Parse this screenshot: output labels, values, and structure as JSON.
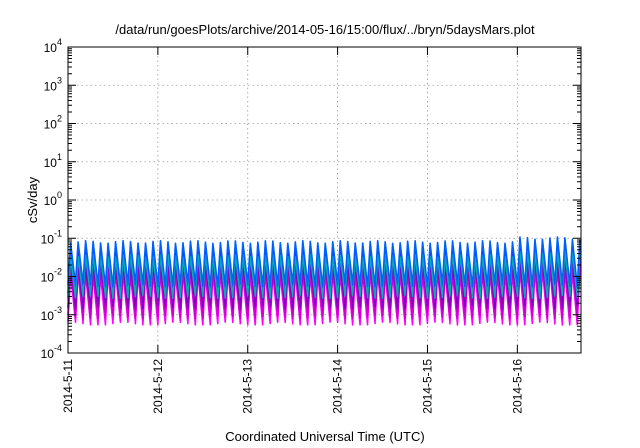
{
  "chart_data": {
    "type": "line",
    "title": "/data/run/goesPlots/archive/2014-05-16/15:00/flux/../bryn/5daysMars.plot",
    "xlabel": "Coordinated Universal Time (UTC)",
    "ylabel": "cSv/day",
    "x_tick_labels": [
      "2014-5-11",
      "2014-5-12",
      "2014-5-13",
      "2014-5-14",
      "2014-5-15",
      "2014-5-16"
    ],
    "y_tick_labels": [
      {
        "base": "10",
        "exp": "-4"
      },
      {
        "base": "10",
        "exp": "-3"
      },
      {
        "base": "10",
        "exp": "-2"
      },
      {
        "base": "10",
        "exp": "-1"
      },
      {
        "base": "10",
        "exp": "0"
      },
      {
        "base": "10",
        "exp": "1"
      },
      {
        "base": "10",
        "exp": "2"
      },
      {
        "base": "10",
        "exp": "3"
      },
      {
        "base": "10",
        "exp": "4"
      }
    ],
    "y_scale": "log",
    "ylim": [
      0.0001,
      10000
    ],
    "xlim": [
      "2014-05-11T00:00",
      "2014-05-16T17:00"
    ],
    "grid": true,
    "legend": "none",
    "period_hours": 2,
    "series": [
      {
        "color": "#ff00ff",
        "peak": 0.012,
        "trough": 0.0006
      },
      {
        "color": "#cc00cc",
        "peak": 0.016,
        "trough": 0.0009
      },
      {
        "color": "#8000c0",
        "peak": 0.024,
        "trough": 0.0016
      },
      {
        "color": "#2020ff",
        "peak": 0.05,
        "trough": 0.004
      },
      {
        "color": "#00b0b0",
        "peak": 0.035,
        "trough": 0.003
      },
      {
        "color": "#0060ff",
        "peak": 0.08,
        "trough": 0.006
      }
    ]
  }
}
